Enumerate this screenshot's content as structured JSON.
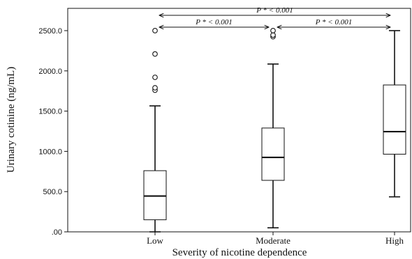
{
  "chart_data": {
    "type": "boxplot",
    "title": "",
    "xlabel": "Severity of nicotine dependence",
    "ylabel": "Urinary cotinine (ng/mL)",
    "ylim": [
      0,
      2700
    ],
    "yticks": [
      0,
      500,
      1000,
      1500,
      2000,
      2500
    ],
    "ytick_labels": [
      ".00",
      "500.0",
      "1000.0",
      "1500.0",
      "2000.0",
      "2500.0"
    ],
    "categories": [
      "Low",
      "Moderate",
      "High"
    ],
    "boxes": [
      {
        "category": "Low",
        "whisker_low": 0,
        "q1": 150,
        "median": 445,
        "q3": 760,
        "whisker_high": 1565,
        "outliers": [
          1760,
          1790,
          1920,
          2210,
          2500
        ]
      },
      {
        "category": "Moderate",
        "whisker_low": 50,
        "q1": 640,
        "median": 925,
        "q3": 1290,
        "whisker_high": 2085,
        "outliers": [
          2425,
          2445,
          2500
        ]
      },
      {
        "category": "High",
        "whisker_low": 435,
        "q1": 965,
        "median": 1245,
        "q3": 1825,
        "whisker_high": 2500,
        "outliers": []
      }
    ],
    "annotations": [
      {
        "from": "Low",
        "to": "High",
        "text": "P * < 0.001",
        "level": 2
      },
      {
        "from": "Low",
        "to": "Moderate",
        "text": "P * < 0.001",
        "level": 1
      },
      {
        "from": "Moderate",
        "to": "High",
        "text": "P * < 0.001",
        "level": 1
      }
    ],
    "grid": false,
    "legend": "none"
  }
}
